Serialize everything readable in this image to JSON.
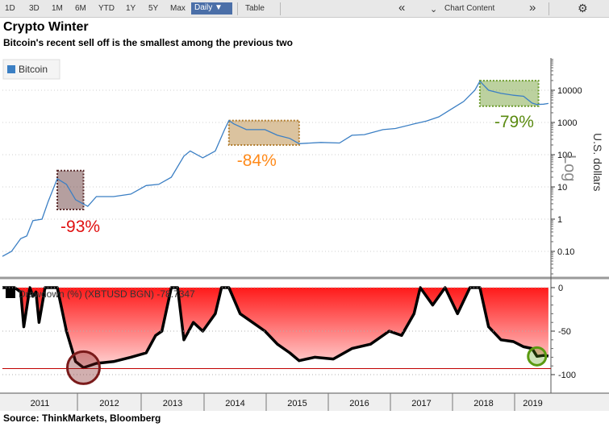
{
  "toolbar": {
    "ranges": [
      "1D",
      "3D",
      "1M",
      "6M",
      "YTD",
      "1Y",
      "5Y",
      "Max"
    ],
    "interval": "Daily ▼",
    "table": "Table",
    "chart_content": "Chart Content",
    "collapse_glyph": "«",
    "expand_glyph": "»",
    "settings_glyph": "⚙"
  },
  "header": {
    "title": "Crypto Winter",
    "subtitle": "Bitcoin's recent sell off is the smallest among the previous two"
  },
  "footer": {
    "source": "Source: ThinkMarkets, Bloomberg"
  },
  "colors": {
    "bitcoin_line": "#3b7fc4",
    "box_2011": "#5a2a2a",
    "box_2013": "#b07a2a",
    "box_2018": "#6a9a2a",
    "label_2011": "#e01010",
    "label_2013": "#ff8a1a",
    "label_2018": "#5a8a10",
    "drawdown_fill": "#ff1a1a",
    "circle_2011": "#7a1a1a",
    "circle_2018": "#5a9a10",
    "ref_line": "#c00000"
  },
  "chart_data": [
    {
      "type": "line",
      "scale": "log",
      "legend": [
        "Bitcoin"
      ],
      "legend_position": "top-left",
      "ylabel": "U.S. dollars",
      "yscale_label": "Log",
      "yticks": [
        "10000",
        "1000",
        "100",
        "10",
        "1",
        "0.10"
      ],
      "series": [
        {
          "name": "Bitcoin",
          "points": [
            [
              2010.55,
              0.07
            ],
            [
              2010.7,
              0.1
            ],
            [
              2010.85,
              0.25
            ],
            [
              2010.95,
              0.3
            ],
            [
              2011.05,
              0.9
            ],
            [
              2011.2,
              1.0
            ],
            [
              2011.3,
              3.5
            ],
            [
              2011.45,
              18
            ],
            [
              2011.6,
              12
            ],
            [
              2011.75,
              4
            ],
            [
              2011.9,
              2.5
            ],
            [
              2012.0,
              5
            ],
            [
              2012.2,
              5
            ],
            [
              2012.4,
              6
            ],
            [
              2012.6,
              11
            ],
            [
              2012.8,
              12
            ],
            [
              2013.0,
              20
            ],
            [
              2013.2,
              90
            ],
            [
              2013.3,
              130
            ],
            [
              2013.5,
              80
            ],
            [
              2013.7,
              130
            ],
            [
              2013.85,
              600
            ],
            [
              2013.92,
              1150
            ],
            [
              2014.0,
              900
            ],
            [
              2014.2,
              600
            ],
            [
              2014.5,
              600
            ],
            [
              2014.7,
              400
            ],
            [
              2014.9,
              320
            ],
            [
              2015.05,
              220
            ],
            [
              2015.4,
              240
            ],
            [
              2015.7,
              230
            ],
            [
              2015.9,
              400
            ],
            [
              2016.1,
              420
            ],
            [
              2016.4,
              600
            ],
            [
              2016.6,
              650
            ],
            [
              2016.9,
              900
            ],
            [
              2017.1,
              1100
            ],
            [
              2017.3,
              1500
            ],
            [
              2017.5,
              2600
            ],
            [
              2017.7,
              4500
            ],
            [
              2017.88,
              10000
            ],
            [
              2017.96,
              19000
            ],
            [
              2018.1,
              10000
            ],
            [
              2018.3,
              8000
            ],
            [
              2018.5,
              7000
            ],
            [
              2018.7,
              6500
            ],
            [
              2018.87,
              4000
            ],
            [
              2018.97,
              3600
            ],
            [
              2019.1,
              3700
            ],
            [
              2019.2,
              3900
            ]
          ]
        }
      ],
      "annotations": [
        {
          "label": "-93%",
          "x_range": [
            2011.45,
            2011.85
          ],
          "y_range": [
            2,
            32
          ]
        },
        {
          "label": "-84%",
          "x_range": [
            2013.92,
            2015.05
          ],
          "y_range": [
            200,
            1150
          ]
        },
        {
          "label": "-79%",
          "x_range": [
            2017.96,
            2019.0
          ],
          "y_range": [
            3200,
            19800
          ]
        }
      ]
    },
    {
      "type": "area",
      "legend": [
        "Drawdown (%) (XBTUSD BGN) -78.7347"
      ],
      "legend_position": "top-left",
      "categories": [
        "2011",
        "2012",
        "2013",
        "2014",
        "2015",
        "2016",
        "2017",
        "2018",
        "2019"
      ],
      "yticks": [
        "0",
        "-50",
        "-100"
      ],
      "ylim": [
        -100,
        0
      ],
      "reference_value": -93,
      "series": [
        {
          "name": "Drawdown (%) (XBTUSD BGN)",
          "points": [
            [
              2010.55,
              0
            ],
            [
              2010.75,
              0
            ],
            [
              2010.85,
              -5
            ],
            [
              2010.9,
              -45
            ],
            [
              2011.0,
              0
            ],
            [
              2011.05,
              -10
            ],
            [
              2011.1,
              -5
            ],
            [
              2011.15,
              -40
            ],
            [
              2011.25,
              0
            ],
            [
              2011.45,
              0
            ],
            [
              2011.6,
              -50
            ],
            [
              2011.75,
              -85
            ],
            [
              2011.85,
              -92
            ],
            [
              2012.0,
              -87
            ],
            [
              2012.2,
              -85
            ],
            [
              2012.4,
              -80
            ],
            [
              2012.6,
              -75
            ],
            [
              2012.75,
              -55
            ],
            [
              2012.85,
              -50
            ],
            [
              2013.0,
              0
            ],
            [
              2013.1,
              0
            ],
            [
              2013.2,
              -60
            ],
            [
              2013.35,
              -40
            ],
            [
              2013.5,
              -50
            ],
            [
              2013.7,
              -30
            ],
            [
              2013.8,
              0
            ],
            [
              2013.92,
              0
            ],
            [
              2014.1,
              -30
            ],
            [
              2014.3,
              -40
            ],
            [
              2014.5,
              -50
            ],
            [
              2014.7,
              -65
            ],
            [
              2014.9,
              -75
            ],
            [
              2015.05,
              -84
            ],
            [
              2015.3,
              -80
            ],
            [
              2015.6,
              -82
            ],
            [
              2015.9,
              -70
            ],
            [
              2016.2,
              -65
            ],
            [
              2016.5,
              -50
            ],
            [
              2016.7,
              -55
            ],
            [
              2016.9,
              -30
            ],
            [
              2017.0,
              0
            ],
            [
              2017.2,
              -20
            ],
            [
              2017.4,
              0
            ],
            [
              2017.6,
              -30
            ],
            [
              2017.8,
              0
            ],
            [
              2017.96,
              0
            ],
            [
              2018.1,
              -45
            ],
            [
              2018.3,
              -60
            ],
            [
              2018.5,
              -62
            ],
            [
              2018.7,
              -68
            ],
            [
              2018.87,
              -70
            ],
            [
              2018.97,
              -79
            ],
            [
              2019.1,
              -78
            ],
            [
              2019.2,
              -78.7
            ]
          ]
        }
      ]
    }
  ]
}
